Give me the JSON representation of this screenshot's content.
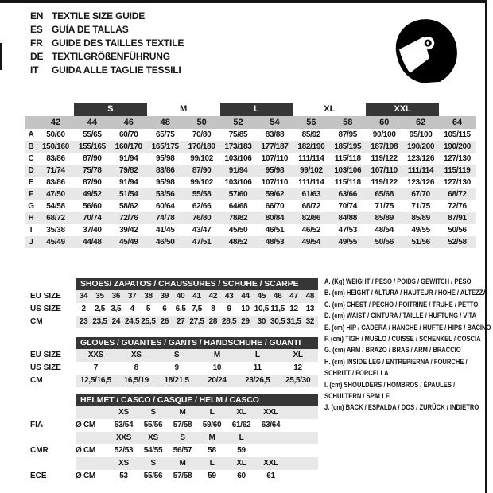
{
  "header": {
    "languages": [
      {
        "code": "EN",
        "title": "TEXTILE SIZE GUIDE"
      },
      {
        "code": "ES",
        "title": "GUÍA DE TALLAS"
      },
      {
        "code": "FR",
        "title": "GUIDE DES TAILLES TEXTILE"
      },
      {
        "code": "DE",
        "title": "TEXTILGRÖßENFÜHRUNG"
      },
      {
        "code": "IT",
        "title": "GUIDA ALLE TAGLIE TESSILI"
      }
    ],
    "icon": "racing-helmet-icon"
  },
  "size_table": {
    "groups": [
      "S",
      "M",
      "L",
      "XL",
      "XXL"
    ],
    "columns": [
      "42",
      "44",
      "46",
      "48",
      "50",
      "52",
      "54",
      "56",
      "58",
      "60",
      "62",
      "64"
    ],
    "rows": [
      {
        "label": "A",
        "values": [
          "50/60",
          "55/65",
          "60/70",
          "65/75",
          "70/80",
          "75/85",
          "83/88",
          "85/92",
          "87/95",
          "90/100",
          "95/100",
          "105/115"
        ]
      },
      {
        "label": "B",
        "values": [
          "150/160",
          "155/165",
          "160/170",
          "165/175",
          "170/180",
          "173/183",
          "177/187",
          "182/190",
          "185/195",
          "187/198",
          "190/200",
          "190/200"
        ]
      },
      {
        "label": "C",
        "values": [
          "83/86",
          "87/90",
          "91/94",
          "95/98",
          "99/102",
          "103/106",
          "107/110",
          "111/114",
          "115/118",
          "119/122",
          "123/126",
          "127/130"
        ]
      },
      {
        "label": "D",
        "values": [
          "71/74",
          "75/78",
          "79/82",
          "83/86",
          "87/90",
          "91/94",
          "95/98",
          "99/102",
          "103/106",
          "107/110",
          "111/114",
          "115/119"
        ]
      },
      {
        "label": "E",
        "values": [
          "83/86",
          "87/90",
          "91/94",
          "95/98",
          "99/102",
          "103/106",
          "107/110",
          "111/114",
          "115/118",
          "119/122",
          "123/126",
          "127/130"
        ]
      },
      {
        "label": "F",
        "values": [
          "47/50",
          "49/52",
          "51/54",
          "53/56",
          "55/58",
          "57/60",
          "59/62",
          "61/63",
          "63/66",
          "65/68",
          "67/70",
          "68/72"
        ]
      },
      {
        "label": "G",
        "values": [
          "54/58",
          "56/60",
          "58/62",
          "60/64",
          "62/66",
          "64/68",
          "66/70",
          "68/72",
          "70/74",
          "71/75",
          "71/75",
          "72/76"
        ]
      },
      {
        "label": "H",
        "values": [
          "68/72",
          "70/74",
          "72/76",
          "74/78",
          "76/80",
          "78/82",
          "80/84",
          "82/86",
          "84/88",
          "85/89",
          "85/89",
          "87/91"
        ]
      },
      {
        "label": "I",
        "values": [
          "35/38",
          "37/40",
          "39/42",
          "41/45",
          "43/47",
          "45/50",
          "46/51",
          "46/52",
          "47/53",
          "48/54",
          "49/55",
          "50/56"
        ]
      },
      {
        "label": "J",
        "values": [
          "45/49",
          "44/48",
          "45/49",
          "46/50",
          "47/51",
          "48/52",
          "48/53",
          "49/54",
          "49/55",
          "50/56",
          "51/56",
          "52/58"
        ]
      }
    ]
  },
  "shoes_table": {
    "title": "SHOES/ ZAPATOS / CHAUSSURES / SCHUHE / SCARPE",
    "rows": [
      {
        "label": "EU SIZE",
        "shaded": true,
        "values": [
          "34",
          "35",
          "36",
          "37",
          "38",
          "39",
          "40",
          "41",
          "42",
          "43",
          "44",
          "45",
          "46",
          "47",
          "48"
        ]
      },
      {
        "label": "US SIZE",
        "shaded": false,
        "values": [
          "2",
          "2,5",
          "3,5",
          "4",
          "5",
          "6",
          "6,5",
          "7,5",
          "8",
          "9",
          "10",
          "10,5",
          "11,5",
          "12",
          "13"
        ]
      },
      {
        "label": "CM",
        "shaded": true,
        "values": [
          "23",
          "23,5",
          "24",
          "24,5",
          "25,5",
          "26",
          "27",
          "27,5",
          "28",
          "28,5",
          "29",
          "30",
          "30,5",
          "31,5",
          "32"
        ]
      }
    ]
  },
  "gloves_table": {
    "title": "GLOVES / GUANTES / GANTS / HANDSCHUHE / GUANTI",
    "rows": [
      {
        "label": "EU SIZE",
        "shaded": true,
        "values": [
          "XXS",
          "XS",
          "S",
          "M",
          "L",
          "XL"
        ]
      },
      {
        "label": "US SIZE",
        "shaded": false,
        "values": [
          "7",
          "8",
          "9",
          "10",
          "11",
          "12"
        ]
      },
      {
        "label": "CM",
        "shaded": true,
        "values": [
          "12,5/16,5",
          "16,5/19",
          "18/21,5",
          "20/24",
          "23/26,5",
          "25,5/30"
        ]
      }
    ]
  },
  "helmet_table": {
    "title": "HELMET / CASCO / CASQUE / HELM / CASCO",
    "unit_label": "Ø CM",
    "sections": [
      {
        "standard": "FIA",
        "sizes": [
          "XS",
          "S",
          "M",
          "L",
          "XL",
          "XXL"
        ],
        "values": [
          "53/54",
          "55/56",
          "57/58",
          "59/60",
          "61/62",
          "63/64"
        ]
      },
      {
        "standard": "CMR",
        "sizes": [
          "XXS",
          "XS",
          "S",
          "M",
          "L"
        ],
        "values": [
          "52/53",
          "54/55",
          "56/57",
          "58",
          "59"
        ]
      },
      {
        "standard": "ECE",
        "sizes": [
          "XS",
          "S",
          "M",
          "L",
          "XL",
          "XXL"
        ],
        "values": [
          "53",
          "55/56",
          "57/58",
          "59",
          "60",
          "61"
        ]
      }
    ]
  },
  "legend": {
    "items": [
      {
        "lines": [
          "A. (Kg) WEIGHT / PESO / POIDS / GEWITCH / PESO"
        ]
      },
      {
        "lines": [
          "B. (cm) HEIGHT / ALTURA / HAUTEUR / HÖHE / ALTEZZA"
        ]
      },
      {
        "lines": [
          "C. (cm) CHEST / PECHO / POITRINE / TRUHE / PETTO"
        ]
      },
      {
        "lines": [
          "D. (cm) WAIST / CINTURA / TAILLE / HÜFTUNG / VITA"
        ]
      },
      {
        "lines": [
          "E. (cm) HIP / CADERA / HANCHE / HÜFTE / HIPS / BACINO"
        ]
      },
      {
        "lines": [
          "F. (cm) TIGH / MUSLO / CUISSE / SCHENKEL / COSCIA"
        ]
      },
      {
        "lines": [
          "G. (cm) ARM / BRAZO / BRAS / ARM / BRACCIO"
        ]
      },
      {
        "lines": [
          "H. (cm) INSIDE LEG / ENTREPIERNA / FOURCHE /",
          "SCHRITT / FORCELLA"
        ]
      },
      {
        "lines": [
          "I. (cm) SHOULDERS / HOMBROS / ÉPAULES /",
          "SCHULTERN / SPALLE"
        ]
      },
      {
        "lines": [
          "J. (cm) BACK / ESPALDA / DOS / ZURÜCK / INDIETRO"
        ]
      }
    ]
  },
  "colors": {
    "dark_header": "#363636",
    "shaded_row": "#e8e8e8",
    "column_band": "#c4c4c4",
    "text": "#161616",
    "helmet_icon": "#000000"
  }
}
